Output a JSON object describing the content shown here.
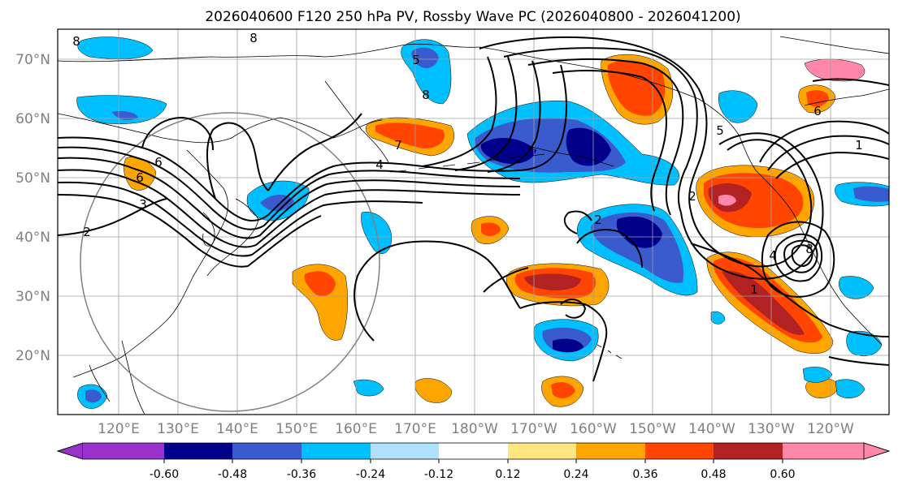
{
  "title": "2026040600 F120 250 hPa PV, Rossby Wave PC (2026040800 - 2026041200)",
  "lat_labels": [
    "70°N",
    "60°N",
    "50°N",
    "40°N",
    "30°N",
    "20°N"
  ],
  "lon_labels": [
    "120°E",
    "130°E",
    "140°E",
    "150°E",
    "160°E",
    "170°E",
    "180°W",
    "170°W",
    "160°W",
    "150°W",
    "140°W",
    "130°W",
    "120°W"
  ],
  "colorbar": {
    "colors": [
      "#9932cc",
      "#00008b",
      "#3a5bcd",
      "#00bfff",
      "#b0e0ff",
      "#ffffff",
      "#ffe680",
      "#ffa500",
      "#ff4500",
      "#b22222",
      "#ff88aa"
    ],
    "tick_labels": [
      "-0.60",
      "-0.48",
      "-0.36",
      "-0.24",
      "-0.12",
      "0.12",
      "0.24",
      "0.36",
      "0.48",
      "0.60"
    ]
  },
  "contour_labels": [
    "8",
    "8",
    "8",
    "6",
    "6",
    "7",
    "4",
    "2",
    "3",
    "2",
    "5",
    "1",
    "1",
    "4",
    "8",
    "6",
    "5",
    "2"
  ],
  "anomaly_colors": {
    "neg_strong": "#00008b",
    "neg_mod": "#3a5bcd",
    "neg_weak": "#00bfff",
    "pos_weak": "#ffa500",
    "pos_mod": "#ff4500",
    "pos_strong": "#b22222",
    "pos_max": "#ff88aa"
  }
}
